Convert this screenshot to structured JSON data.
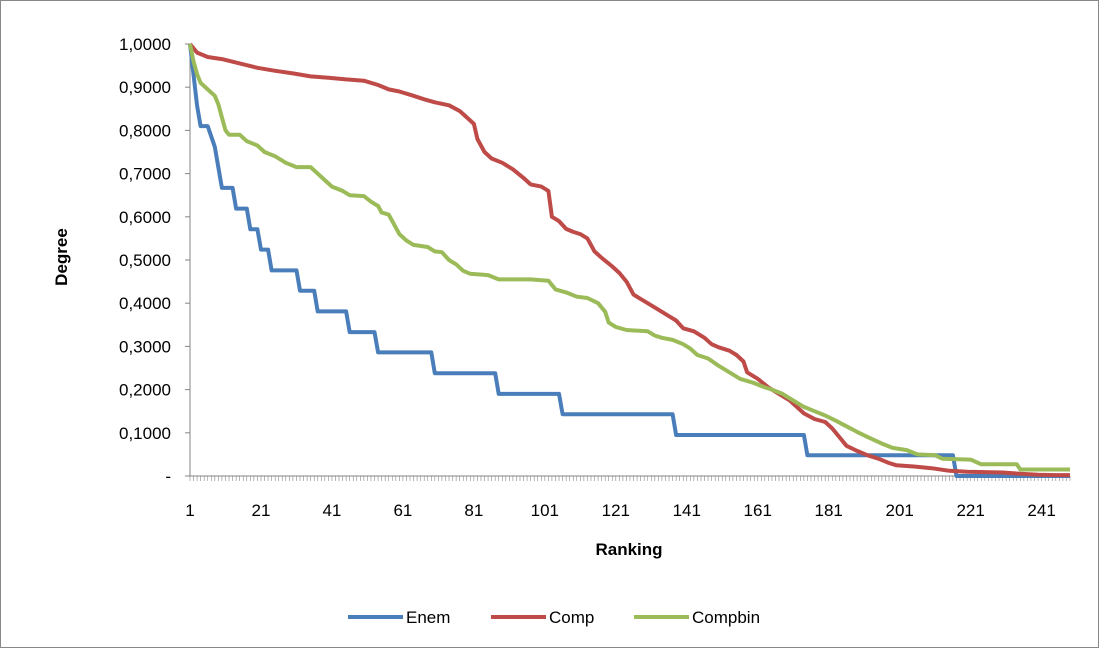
{
  "chart_data": {
    "type": "line",
    "xlabel": "Ranking",
    "ylabel": "Degree",
    "x_tick_labels": [
      "1",
      "21",
      "41",
      "61",
      "81",
      "101",
      "121",
      "141",
      "161",
      "181",
      "201",
      "221",
      "241"
    ],
    "y_tick_labels": [
      "-",
      "0,1000",
      "0,2000",
      "0,3000",
      "0,4000",
      "0,5000",
      "0,6000",
      "0,7000",
      "0,8000",
      "0,9000",
      "1,0000"
    ],
    "xlim": [
      1,
      249
    ],
    "ylim": [
      0,
      1
    ],
    "grid": false,
    "legend_position": "bottom",
    "series": [
      {
        "name": "Enem",
        "color": "#4a7ebb",
        "points": [
          [
            1,
            1.0
          ],
          [
            3,
            0.857
          ],
          [
            4,
            0.81
          ],
          [
            6,
            0.81
          ],
          [
            8,
            0.762
          ],
          [
            9,
            0.714
          ],
          [
            10,
            0.667
          ],
          [
            13,
            0.667
          ],
          [
            14,
            0.619
          ],
          [
            17,
            0.619
          ],
          [
            18,
            0.571
          ],
          [
            20,
            0.571
          ],
          [
            21,
            0.524
          ],
          [
            23,
            0.524
          ],
          [
            24,
            0.476
          ],
          [
            31,
            0.476
          ],
          [
            32,
            0.429
          ],
          [
            36,
            0.429
          ],
          [
            37,
            0.381
          ],
          [
            45,
            0.381
          ],
          [
            46,
            0.333
          ],
          [
            53,
            0.333
          ],
          [
            54,
            0.286
          ],
          [
            69,
            0.286
          ],
          [
            70,
            0.238
          ],
          [
            87,
            0.238
          ],
          [
            88,
            0.19
          ],
          [
            105,
            0.19
          ],
          [
            106,
            0.143
          ],
          [
            137,
            0.143
          ],
          [
            138,
            0.095
          ],
          [
            174,
            0.095
          ],
          [
            175,
            0.048
          ],
          [
            216,
            0.048
          ],
          [
            217,
            0.0
          ],
          [
            249,
            0.0
          ]
        ]
      },
      {
        "name": "Comp",
        "color": "#be4b48",
        "points": [
          [
            1,
            1.0
          ],
          [
            3,
            0.98
          ],
          [
            6,
            0.97
          ],
          [
            10,
            0.965
          ],
          [
            15,
            0.955
          ],
          [
            20,
            0.945
          ],
          [
            25,
            0.938
          ],
          [
            30,
            0.932
          ],
          [
            35,
            0.925
          ],
          [
            40,
            0.922
          ],
          [
            45,
            0.918
          ],
          [
            50,
            0.915
          ],
          [
            54,
            0.905
          ],
          [
            57,
            0.895
          ],
          [
            60,
            0.89
          ],
          [
            64,
            0.88
          ],
          [
            67,
            0.872
          ],
          [
            70,
            0.865
          ],
          [
            74,
            0.858
          ],
          [
            77,
            0.845
          ],
          [
            79,
            0.83
          ],
          [
            81,
            0.815
          ],
          [
            82,
            0.78
          ],
          [
            84,
            0.75
          ],
          [
            86,
            0.735
          ],
          [
            89,
            0.725
          ],
          [
            92,
            0.71
          ],
          [
            95,
            0.69
          ],
          [
            97,
            0.675
          ],
          [
            100,
            0.67
          ],
          [
            102,
            0.66
          ],
          [
            103,
            0.6
          ],
          [
            105,
            0.59
          ],
          [
            107,
            0.572
          ],
          [
            109,
            0.565
          ],
          [
            111,
            0.56
          ],
          [
            113,
            0.55
          ],
          [
            115,
            0.52
          ],
          [
            117,
            0.505
          ],
          [
            120,
            0.485
          ],
          [
            122,
            0.47
          ],
          [
            124,
            0.45
          ],
          [
            126,
            0.42
          ],
          [
            128,
            0.41
          ],
          [
            130,
            0.4
          ],
          [
            133,
            0.385
          ],
          [
            136,
            0.37
          ],
          [
            138,
            0.36
          ],
          [
            140,
            0.342
          ],
          [
            143,
            0.335
          ],
          [
            146,
            0.32
          ],
          [
            148,
            0.305
          ],
          [
            150,
            0.298
          ],
          [
            153,
            0.29
          ],
          [
            155,
            0.28
          ],
          [
            157,
            0.265
          ],
          [
            158,
            0.24
          ],
          [
            161,
            0.225
          ],
          [
            164,
            0.205
          ],
          [
            167,
            0.19
          ],
          [
            170,
            0.175
          ],
          [
            172,
            0.16
          ],
          [
            174,
            0.145
          ],
          [
            177,
            0.132
          ],
          [
            180,
            0.125
          ],
          [
            182,
            0.11
          ],
          [
            184,
            0.09
          ],
          [
            186,
            0.07
          ],
          [
            189,
            0.058
          ],
          [
            192,
            0.048
          ],
          [
            195,
            0.04
          ],
          [
            198,
            0.03
          ],
          [
            200,
            0.025
          ],
          [
            205,
            0.022
          ],
          [
            210,
            0.018
          ],
          [
            215,
            0.012
          ],
          [
            220,
            0.01
          ],
          [
            225,
            0.009
          ],
          [
            230,
            0.008
          ],
          [
            235,
            0.005
          ],
          [
            240,
            0.003
          ],
          [
            245,
            0.002
          ],
          [
            249,
            0.002
          ]
        ]
      },
      {
        "name": "Compbin",
        "color": "#9bbb59",
        "points": [
          [
            1,
            1.0
          ],
          [
            2,
            0.96
          ],
          [
            3,
            0.93
          ],
          [
            4,
            0.91
          ],
          [
            6,
            0.895
          ],
          [
            8,
            0.88
          ],
          [
            9,
            0.86
          ],
          [
            10,
            0.83
          ],
          [
            11,
            0.8
          ],
          [
            12,
            0.79
          ],
          [
            15,
            0.79
          ],
          [
            17,
            0.775
          ],
          [
            20,
            0.765
          ],
          [
            22,
            0.75
          ],
          [
            25,
            0.74
          ],
          [
            28,
            0.725
          ],
          [
            31,
            0.715
          ],
          [
            35,
            0.715
          ],
          [
            37,
            0.7
          ],
          [
            39,
            0.685
          ],
          [
            41,
            0.67
          ],
          [
            44,
            0.66
          ],
          [
            46,
            0.65
          ],
          [
            50,
            0.648
          ],
          [
            52,
            0.635
          ],
          [
            54,
            0.625
          ],
          [
            55,
            0.61
          ],
          [
            57,
            0.605
          ],
          [
            58,
            0.59
          ],
          [
            59,
            0.575
          ],
          [
            60,
            0.56
          ],
          [
            62,
            0.545
          ],
          [
            64,
            0.535
          ],
          [
            68,
            0.53
          ],
          [
            70,
            0.52
          ],
          [
            72,
            0.518
          ],
          [
            74,
            0.5
          ],
          [
            76,
            0.49
          ],
          [
            78,
            0.475
          ],
          [
            80,
            0.468
          ],
          [
            85,
            0.465
          ],
          [
            88,
            0.455
          ],
          [
            92,
            0.455
          ],
          [
            97,
            0.455
          ],
          [
            102,
            0.452
          ],
          [
            104,
            0.432
          ],
          [
            107,
            0.425
          ],
          [
            110,
            0.415
          ],
          [
            113,
            0.412
          ],
          [
            116,
            0.4
          ],
          [
            118,
            0.38
          ],
          [
            119,
            0.355
          ],
          [
            121,
            0.345
          ],
          [
            124,
            0.338
          ],
          [
            130,
            0.335
          ],
          [
            132,
            0.325
          ],
          [
            134,
            0.32
          ],
          [
            137,
            0.315
          ],
          [
            140,
            0.305
          ],
          [
            142,
            0.295
          ],
          [
            144,
            0.28
          ],
          [
            147,
            0.272
          ],
          [
            150,
            0.255
          ],
          [
            153,
            0.24
          ],
          [
            156,
            0.225
          ],
          [
            160,
            0.215
          ],
          [
            163,
            0.205
          ],
          [
            165,
            0.2
          ],
          [
            168,
            0.19
          ],
          [
            171,
            0.175
          ],
          [
            174,
            0.16
          ],
          [
            177,
            0.15
          ],
          [
            180,
            0.14
          ],
          [
            183,
            0.128
          ],
          [
            186,
            0.115
          ],
          [
            189,
            0.102
          ],
          [
            192,
            0.09
          ],
          [
            196,
            0.075
          ],
          [
            199,
            0.065
          ],
          [
            203,
            0.06
          ],
          [
            206,
            0.05
          ],
          [
            211,
            0.048
          ],
          [
            213,
            0.04
          ],
          [
            221,
            0.038
          ],
          [
            224,
            0.027
          ],
          [
            234,
            0.027
          ],
          [
            235,
            0.015
          ],
          [
            249,
            0.015
          ]
        ]
      }
    ]
  }
}
